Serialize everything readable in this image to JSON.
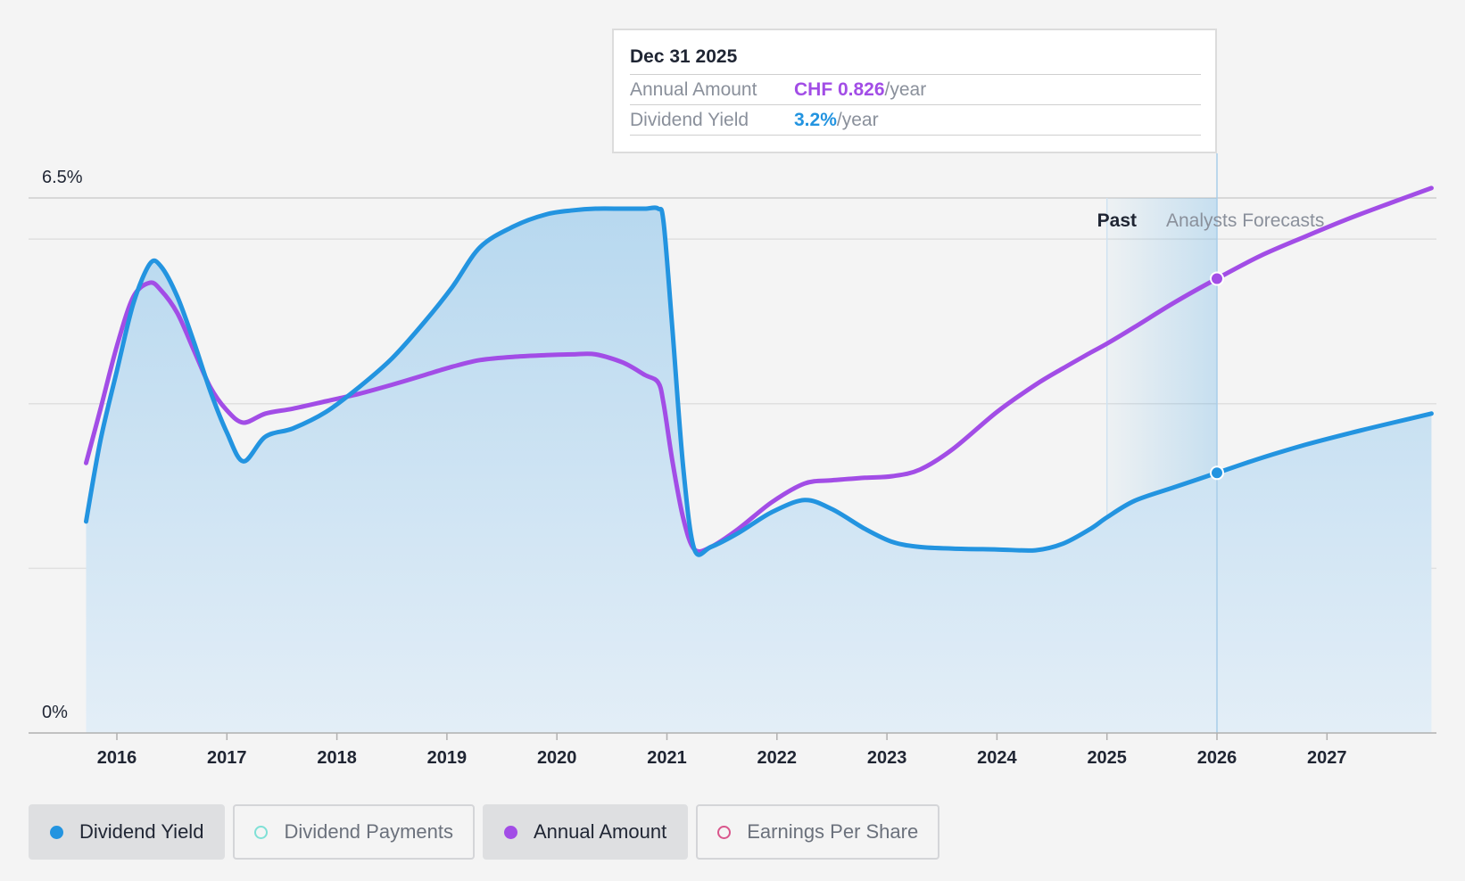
{
  "tooltip": {
    "date": "Dec 31 2025",
    "rows": [
      {
        "label": "Annual Amount",
        "value": "CHF 0.826",
        "unit": "/year"
      },
      {
        "label": "Dividend Yield",
        "value": "3.2%",
        "unit": "/year"
      }
    ]
  },
  "chart_data": {
    "type": "line",
    "ylabel_top": "6.5%",
    "ylabel_bottom": "0%",
    "ylim": [
      0,
      6.5
    ],
    "xlim": [
      2015.7,
      2027.95
    ],
    "x_ticks": [
      "2016",
      "2017",
      "2018",
      "2019",
      "2020",
      "2021",
      "2022",
      "2023",
      "2024",
      "2025",
      "2026",
      "2027"
    ],
    "period_labels": {
      "past": "Past",
      "forecast": "Analysts Forecasts"
    },
    "divider_x": 2026.0,
    "forecast_shade_start": 2025.0,
    "series": [
      {
        "name": "Dividend Yield",
        "color": "#2394e0",
        "filled": true,
        "x": [
          2015.72,
          2015.85,
          2016.0,
          2016.15,
          2016.3,
          2016.4,
          2016.55,
          2016.7,
          2016.85,
          2017.0,
          2017.15,
          2017.35,
          2017.6,
          2017.9,
          2018.2,
          2018.5,
          2018.8,
          2019.05,
          2019.3,
          2019.6,
          2019.9,
          2020.15,
          2020.35,
          2020.6,
          2020.8,
          2020.92,
          2020.97,
          2021.05,
          2021.15,
          2021.25,
          2021.4,
          2021.65,
          2021.95,
          2022.25,
          2022.5,
          2022.8,
          2023.05,
          2023.3,
          2023.6,
          2024.0,
          2024.35,
          2024.6,
          2024.85,
          2025.0,
          2025.25,
          2025.6,
          2026.0,
          2026.4,
          2026.8,
          2027.2,
          2027.6,
          2027.95
        ],
        "values": [
          2.57,
          3.55,
          4.4,
          5.22,
          5.7,
          5.67,
          5.3,
          4.75,
          4.15,
          3.65,
          3.3,
          3.6,
          3.7,
          3.9,
          4.2,
          4.55,
          5.0,
          5.42,
          5.9,
          6.15,
          6.3,
          6.35,
          6.37,
          6.37,
          6.37,
          6.37,
          6.2,
          4.9,
          3.2,
          2.23,
          2.26,
          2.43,
          2.68,
          2.83,
          2.72,
          2.48,
          2.32,
          2.26,
          2.24,
          2.23,
          2.22,
          2.3,
          2.48,
          2.62,
          2.82,
          2.98,
          3.16,
          3.34,
          3.5,
          3.64,
          3.77,
          3.88
        ]
      },
      {
        "name": "Annual Amount",
        "color": "#a24de6",
        "filled": false,
        "x": [
          2015.72,
          2015.85,
          2016.0,
          2016.15,
          2016.3,
          2016.4,
          2016.55,
          2016.7,
          2016.85,
          2017.0,
          2017.15,
          2017.35,
          2017.6,
          2017.9,
          2018.2,
          2018.5,
          2018.8,
          2019.05,
          2019.3,
          2019.6,
          2019.9,
          2020.15,
          2020.35,
          2020.6,
          2020.8,
          2020.92,
          2020.97,
          2021.05,
          2021.15,
          2021.25,
          2021.4,
          2021.65,
          2021.95,
          2022.25,
          2022.5,
          2022.8,
          2023.05,
          2023.3,
          2023.6,
          2024.0,
          2024.35,
          2024.6,
          2024.85,
          2025.0,
          2025.25,
          2025.6,
          2026.0,
          2026.4,
          2026.8,
          2027.2,
          2027.6,
          2027.95
        ],
        "values": [
          3.28,
          3.93,
          4.7,
          5.3,
          5.47,
          5.38,
          5.1,
          4.65,
          4.2,
          3.92,
          3.77,
          3.88,
          3.94,
          4.03,
          4.12,
          4.23,
          4.35,
          4.45,
          4.53,
          4.57,
          4.59,
          4.6,
          4.6,
          4.5,
          4.35,
          4.26,
          4.0,
          3.3,
          2.6,
          2.23,
          2.26,
          2.48,
          2.8,
          3.03,
          3.07,
          3.1,
          3.12,
          3.2,
          3.45,
          3.9,
          4.23,
          4.43,
          4.62,
          4.73,
          4.93,
          5.22,
          5.52,
          5.8,
          6.03,
          6.25,
          6.45,
          6.62
        ]
      }
    ],
    "markers": [
      {
        "series": "Dividend Yield",
        "x": 2026.0,
        "value": 3.16
      },
      {
        "series": "Annual Amount",
        "x": 2026.0,
        "value": 5.52
      }
    ]
  },
  "legend": [
    {
      "label": "Dividend Yield",
      "active": true,
      "dot_style": "filled",
      "color": "#2394e0"
    },
    {
      "label": "Dividend Payments",
      "active": false,
      "dot_style": "outline",
      "color": "#7fe0d6"
    },
    {
      "label": "Annual Amount",
      "active": true,
      "dot_style": "filled",
      "color": "#a24de6"
    },
    {
      "label": "Earnings Per Share",
      "active": false,
      "dot_style": "outline",
      "color": "#d9568c"
    }
  ]
}
